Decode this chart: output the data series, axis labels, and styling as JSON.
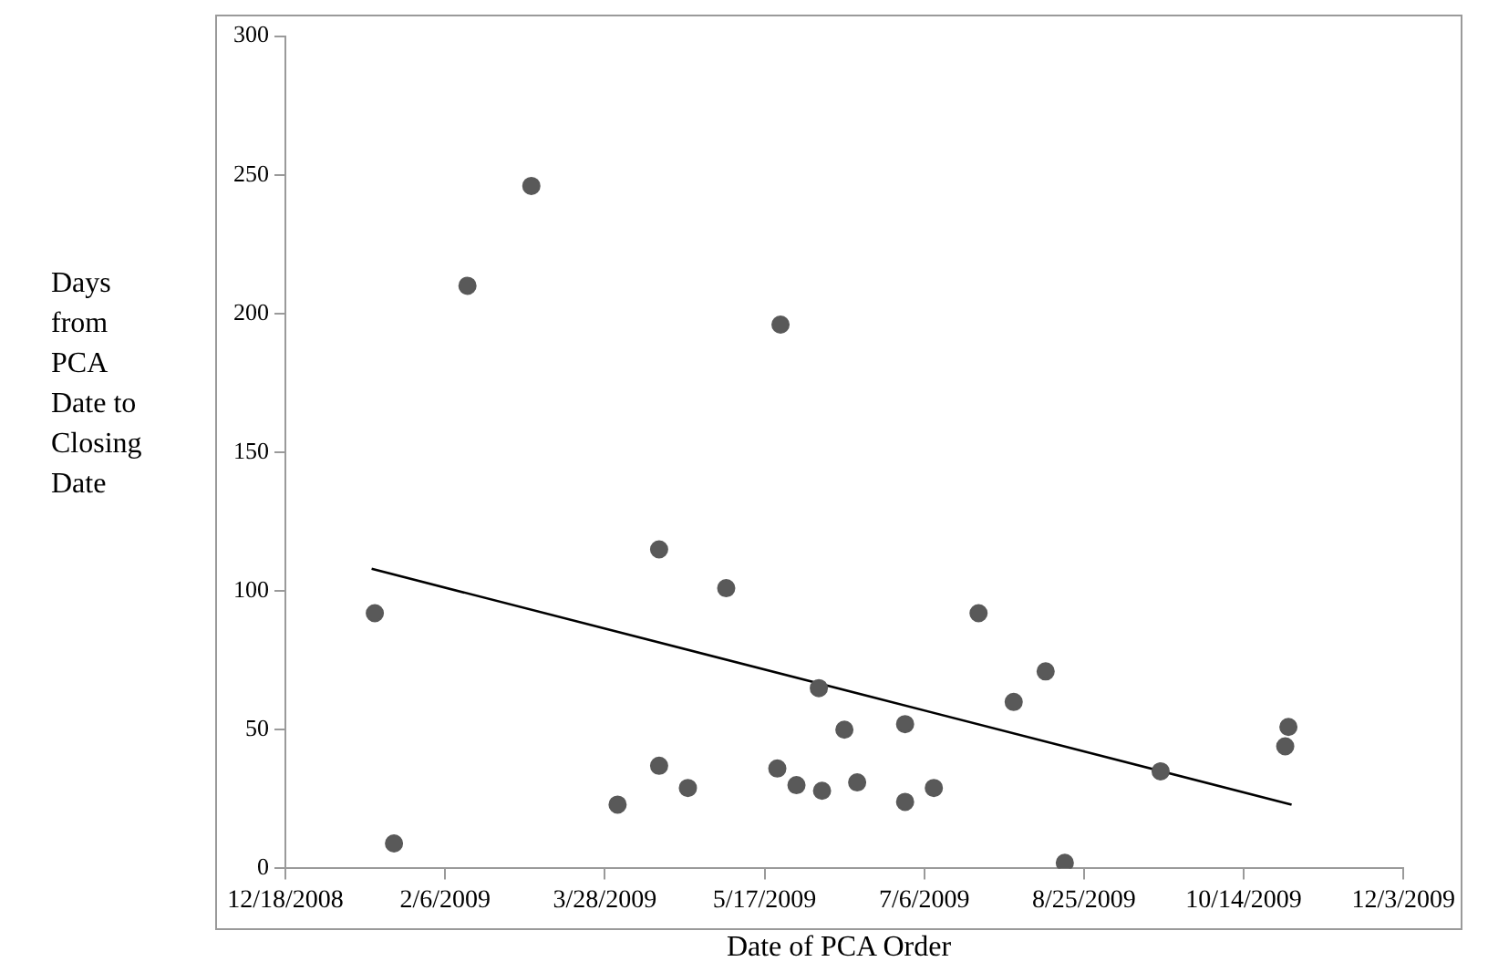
{
  "chart_data": {
    "type": "scatter",
    "xlabel": "Date of PCA Order",
    "ylabel": "Days from PCA Date to Closing Date",
    "marker": "circle",
    "xlim": [
      "2008-12-18",
      "2009-12-03"
    ],
    "xticks": [
      {
        "value": "2008-12-18",
        "label": "12/18/2008"
      },
      {
        "value": "2009-02-06",
        "label": "2/6/2009"
      },
      {
        "value": "2009-03-28",
        "label": "3/28/2009"
      },
      {
        "value": "2009-05-17",
        "label": "5/17/2009"
      },
      {
        "value": "2009-07-06",
        "label": "7/6/2009"
      },
      {
        "value": "2009-08-25",
        "label": "8/25/2009"
      },
      {
        "value": "2009-10-14",
        "label": "10/14/2009"
      },
      {
        "value": "2009-12-03",
        "label": "12/3/2009"
      }
    ],
    "ylim": [
      0,
      300
    ],
    "yticks": [
      0,
      50,
      100,
      150,
      200,
      250,
      300
    ],
    "series": [
      {
        "color": "#595959",
        "x": [
          "2009-01-15",
          "2009-01-21",
          "2009-02-13",
          "2009-03-05",
          "2009-04-01",
          "2009-04-14",
          "2009-04-14",
          "2009-04-23",
          "2009-05-05",
          "2009-05-21",
          "2009-05-22",
          "2009-05-27",
          "2009-06-03",
          "2009-06-04",
          "2009-06-15",
          "2009-06-11",
          "2009-06-30",
          "2009-06-30",
          "2009-07-09",
          "2009-07-23",
          "2009-08-03",
          "2009-08-13",
          "2009-08-19",
          "2009-09-18",
          "2009-10-28",
          "2009-10-27"
        ],
        "values": [
          92,
          9,
          210,
          246,
          23,
          115,
          37,
          29,
          101,
          36,
          196,
          30,
          65,
          28,
          31,
          50,
          52,
          24,
          29,
          92,
          60,
          71,
          2,
          35,
          51,
          44
        ]
      },
      {
        "type": "line",
        "color": "#000000",
        "marker": "none",
        "x": [
          "2009-01-14",
          "2009-10-29"
        ],
        "values": [
          108,
          23
        ]
      }
    ]
  }
}
